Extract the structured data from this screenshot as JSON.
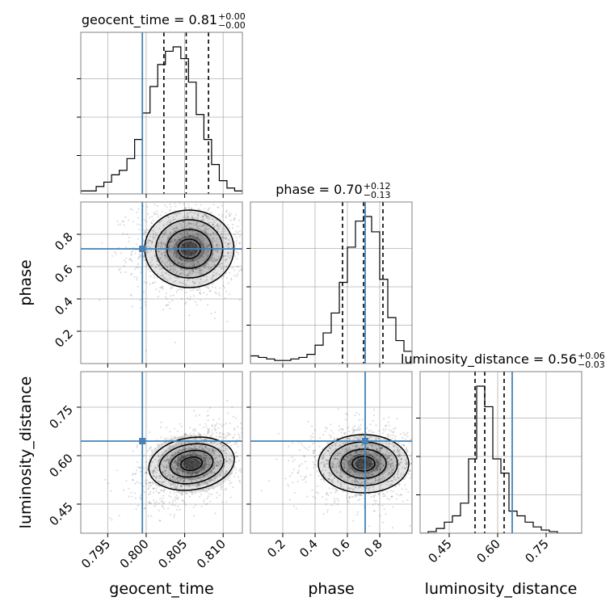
{
  "chart_data": {
    "type": "corner",
    "parameters": [
      "geocent_time",
      "phase",
      "luminosity_distance"
    ],
    "truths": [
      0.7995,
      0.71,
      0.645
    ],
    "truth_color": "#4682b4",
    "titles": [
      {
        "label": "geocent_time = 0.81",
        "plus": "+0.00",
        "minus": "−0.00"
      },
      {
        "label": "phase = 0.70",
        "plus": "+0.12",
        "minus": "−0.13"
      },
      {
        "label": "luminosity_distance = 0.56",
        "plus": "+0.06",
        "minus": "−0.03"
      }
    ],
    "axes": {
      "geocent_time": {
        "range": [
          0.7915,
          0.8125
        ],
        "ticks": [
          0.795,
          0.8,
          0.805,
          0.81
        ],
        "tick_labels": [
          "0.795",
          "0.800",
          "0.805",
          "0.810"
        ]
      },
      "phase": {
        "range": [
          0.0,
          1.0
        ],
        "ticks": [
          0.2,
          0.4,
          0.6,
          0.8
        ],
        "tick_labels": [
          "0.2",
          "0.4",
          "0.6",
          "0.8"
        ]
      },
      "luminosity_distance": {
        "range": [
          0.36,
          0.86
        ],
        "ticks": [
          0.45,
          0.6,
          0.75
        ],
        "tick_labels": [
          "0.45",
          "0.60",
          "0.75"
        ]
      }
    },
    "histograms": [
      {
        "parameter": "geocent_time",
        "bins": [
          0.7915,
          0.7925,
          0.7935,
          0.7945,
          0.7955,
          0.7965,
          0.7975,
          0.7985,
          0.7995,
          0.8005,
          0.8015,
          0.8025,
          0.8035,
          0.8045,
          0.8055,
          0.8065,
          0.8075,
          0.8085,
          0.8095,
          0.8105,
          0.8115,
          0.8125
        ],
        "counts": [
          0.02,
          0.02,
          0.05,
          0.08,
          0.13,
          0.16,
          0.24,
          0.37,
          0.55,
          0.73,
          0.88,
          0.97,
          1.0,
          0.92,
          0.76,
          0.54,
          0.37,
          0.2,
          0.09,
          0.04,
          0.02
        ],
        "quantiles": [
          0.8023,
          0.8052,
          0.8081
        ]
      },
      {
        "parameter": "phase",
        "bins": [
          0.0,
          0.05,
          0.1,
          0.15,
          0.2,
          0.25,
          0.3,
          0.35,
          0.4,
          0.45,
          0.5,
          0.55,
          0.6,
          0.65,
          0.7,
          0.75,
          0.8,
          0.85,
          0.9,
          0.95,
          1.0
        ],
        "counts": [
          0.05,
          0.04,
          0.03,
          0.02,
          0.02,
          0.03,
          0.04,
          0.06,
          0.12,
          0.2,
          0.33,
          0.53,
          0.76,
          0.93,
          0.96,
          0.86,
          0.55,
          0.3,
          0.15,
          0.08
        ],
        "quantiles": [
          0.57,
          0.7,
          0.82
        ]
      },
      {
        "parameter": "luminosity_distance",
        "bins": [
          0.36,
          0.385,
          0.41,
          0.435,
          0.46,
          0.485,
          0.51,
          0.535,
          0.56,
          0.585,
          0.61,
          0.635,
          0.66,
          0.685,
          0.71,
          0.735,
          0.76,
          0.785,
          0.81,
          0.835,
          0.86
        ],
        "counts": [
          0.0,
          0.01,
          0.03,
          0.07,
          0.11,
          0.19,
          0.47,
          0.93,
          0.8,
          0.47,
          0.38,
          0.14,
          0.11,
          0.07,
          0.04,
          0.02,
          0.01,
          0.0,
          0.0,
          0.0
        ],
        "quantiles": [
          0.53,
          0.56,
          0.62
        ]
      }
    ],
    "density_2d": [
      {
        "x": "geocent_time",
        "y": "phase",
        "center": [
          0.8056,
          0.71
        ],
        "sigma": [
          0.0029,
          0.12
        ],
        "skew": 0.0
      },
      {
        "x": "geocent_time",
        "y": "luminosity_distance",
        "center": [
          0.8059,
          0.575
        ],
        "sigma": [
          0.0028,
          0.045
        ],
        "skew": 0.42
      },
      {
        "x": "phase",
        "y": "luminosity_distance",
        "center": [
          0.7,
          0.575
        ],
        "sigma": [
          0.14,
          0.045
        ],
        "skew": 0.0
      }
    ],
    "grid": true,
    "legend": "none"
  }
}
